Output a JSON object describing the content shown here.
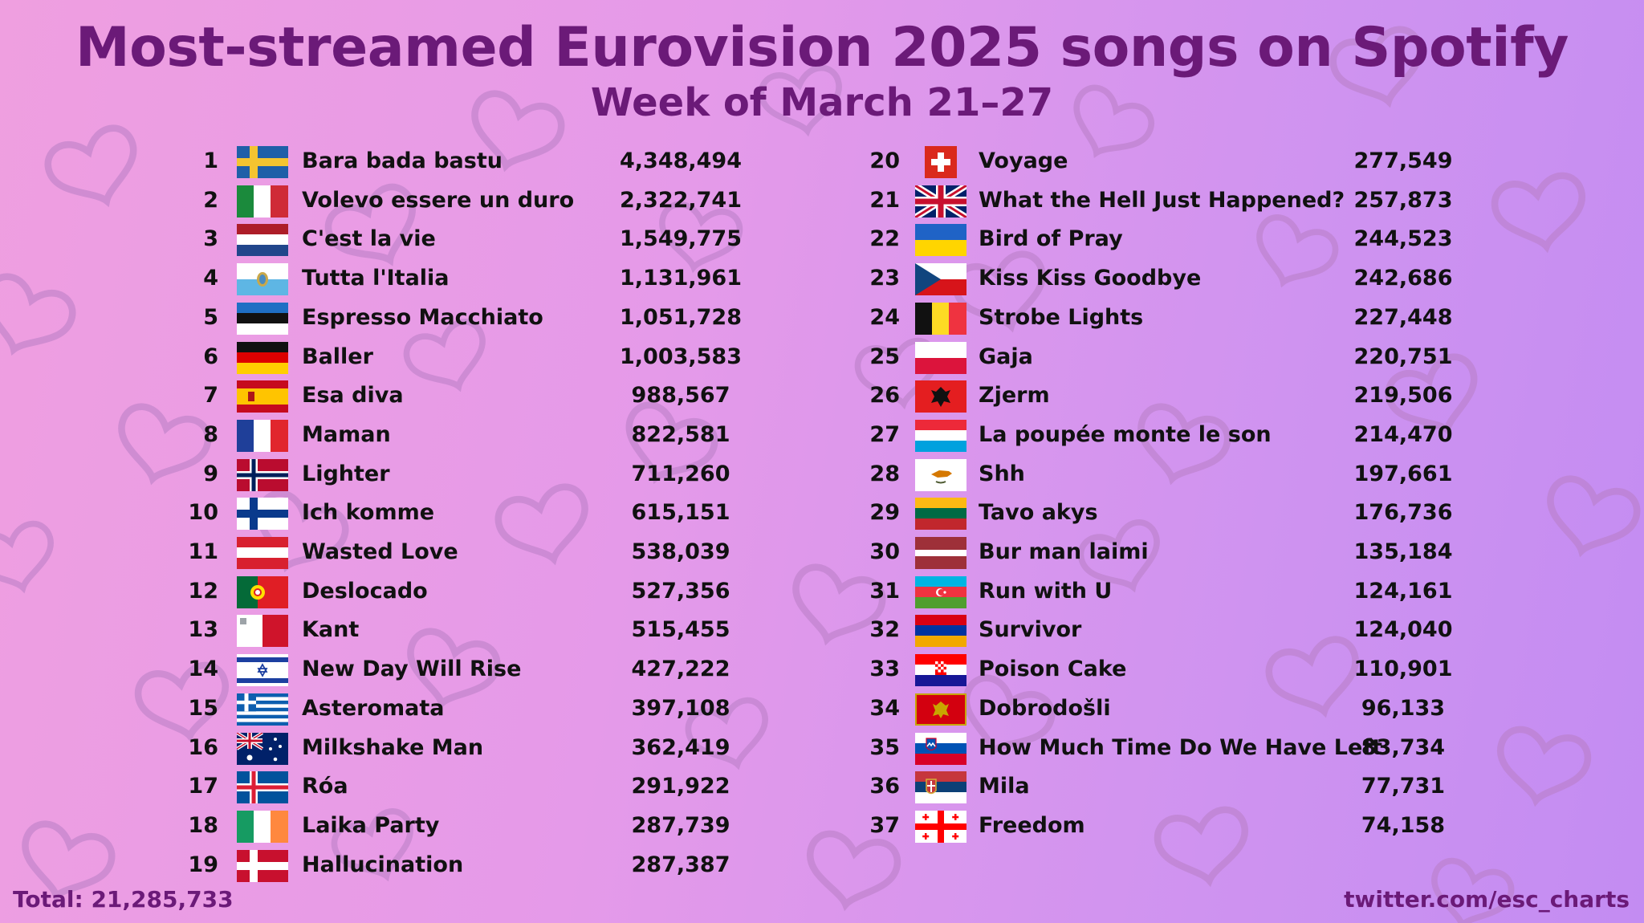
{
  "title": "Most-streamed Eurovision 2025 songs on Spotify",
  "subtitle": "Week of March 21–27",
  "total": "Total: 21,285,733",
  "credit": "twitter.com/esc_charts",
  "colors": {
    "title": "#6b1a78",
    "text": "#111111",
    "heart_outline": "#b87ec4"
  },
  "entries": [
    {
      "rank": "1",
      "song": "Bara bada bastu",
      "streams": "4,348,494",
      "flag": "sweden-flag-icon"
    },
    {
      "rank": "2",
      "song": "Volevo essere un duro",
      "streams": "2,322,741",
      "flag": "italy-flag-icon"
    },
    {
      "rank": "3",
      "song": "C'est la vie",
      "streams": "1,549,775",
      "flag": "netherlands-flag-icon"
    },
    {
      "rank": "4",
      "song": "Tutta l'Italia",
      "streams": "1,131,961",
      "flag": "san-marino-flag-icon"
    },
    {
      "rank": "5",
      "song": "Espresso Macchiato",
      "streams": "1,051,728",
      "flag": "estonia-flag-icon"
    },
    {
      "rank": "6",
      "song": "Baller",
      "streams": "1,003,583",
      "flag": "germany-flag-icon"
    },
    {
      "rank": "7",
      "song": "Esa diva",
      "streams": "988,567",
      "flag": "spain-flag-icon"
    },
    {
      "rank": "8",
      "song": "Maman",
      "streams": "822,581",
      "flag": "france-flag-icon"
    },
    {
      "rank": "9",
      "song": "Lighter",
      "streams": "711,260",
      "flag": "norway-flag-icon"
    },
    {
      "rank": "10",
      "song": "Ich komme",
      "streams": "615,151",
      "flag": "finland-flag-icon"
    },
    {
      "rank": "11",
      "song": "Wasted Love",
      "streams": "538,039",
      "flag": "austria-flag-icon"
    },
    {
      "rank": "12",
      "song": "Deslocado",
      "streams": "527,356",
      "flag": "portugal-flag-icon"
    },
    {
      "rank": "13",
      "song": "Kant",
      "streams": "515,455",
      "flag": "malta-flag-icon"
    },
    {
      "rank": "14",
      "song": "New Day Will Rise",
      "streams": "427,222",
      "flag": "israel-flag-icon"
    },
    {
      "rank": "15",
      "song": "Asteromata",
      "streams": "397,108",
      "flag": "greece-flag-icon"
    },
    {
      "rank": "16",
      "song": "Milkshake Man",
      "streams": "362,419",
      "flag": "australia-flag-icon"
    },
    {
      "rank": "17",
      "song": "Róa",
      "streams": "291,922",
      "flag": "iceland-flag-icon"
    },
    {
      "rank": "18",
      "song": "Laika Party",
      "streams": "287,739",
      "flag": "ireland-flag-icon"
    },
    {
      "rank": "19",
      "song": "Hallucination",
      "streams": "287,387",
      "flag": "denmark-flag-icon"
    },
    {
      "rank": "20",
      "song": "Voyage",
      "streams": "277,549",
      "flag": "switzerland-flag-icon"
    },
    {
      "rank": "21",
      "song": "What the Hell Just Happened?",
      "streams": "257,873",
      "flag": "united-kingdom-flag-icon"
    },
    {
      "rank": "22",
      "song": "Bird of Pray",
      "streams": "244,523",
      "flag": "ukraine-flag-icon"
    },
    {
      "rank": "23",
      "song": "Kiss Kiss Goodbye",
      "streams": "242,686",
      "flag": "czechia-flag-icon"
    },
    {
      "rank": "24",
      "song": "Strobe Lights",
      "streams": "227,448",
      "flag": "belgium-flag-icon"
    },
    {
      "rank": "25",
      "song": "Gaja",
      "streams": "220,751",
      "flag": "poland-flag-icon"
    },
    {
      "rank": "26",
      "song": "Zjerm",
      "streams": "219,506",
      "flag": "albania-flag-icon"
    },
    {
      "rank": "27",
      "song": "La poupée monte le son",
      "streams": "214,470",
      "flag": "luxembourg-flag-icon"
    },
    {
      "rank": "28",
      "song": "Shh",
      "streams": "197,661",
      "flag": "cyprus-flag-icon"
    },
    {
      "rank": "29",
      "song": "Tavo akys",
      "streams": "176,736",
      "flag": "lithuania-flag-icon"
    },
    {
      "rank": "30",
      "song": "Bur man laimi",
      "streams": "135,184",
      "flag": "latvia-flag-icon"
    },
    {
      "rank": "31",
      "song": "Run with U",
      "streams": "124,161",
      "flag": "azerbaijan-flag-icon"
    },
    {
      "rank": "32",
      "song": "Survivor",
      "streams": "124,040",
      "flag": "armenia-flag-icon"
    },
    {
      "rank": "33",
      "song": "Poison Cake",
      "streams": "110,901",
      "flag": "croatia-flag-icon"
    },
    {
      "rank": "34",
      "song": "Dobrodošli",
      "streams": "96,133",
      "flag": "montenegro-flag-icon"
    },
    {
      "rank": "35",
      "song": "How Much Time Do We Have Left",
      "streams": "83,734",
      "flag": "slovenia-flag-icon"
    },
    {
      "rank": "36",
      "song": "Mila",
      "streams": "77,731",
      "flag": "serbia-flag-icon"
    },
    {
      "rank": "37",
      "song": "Freedom",
      "streams": "74,158",
      "flag": "georgia-flag-icon"
    }
  ]
}
